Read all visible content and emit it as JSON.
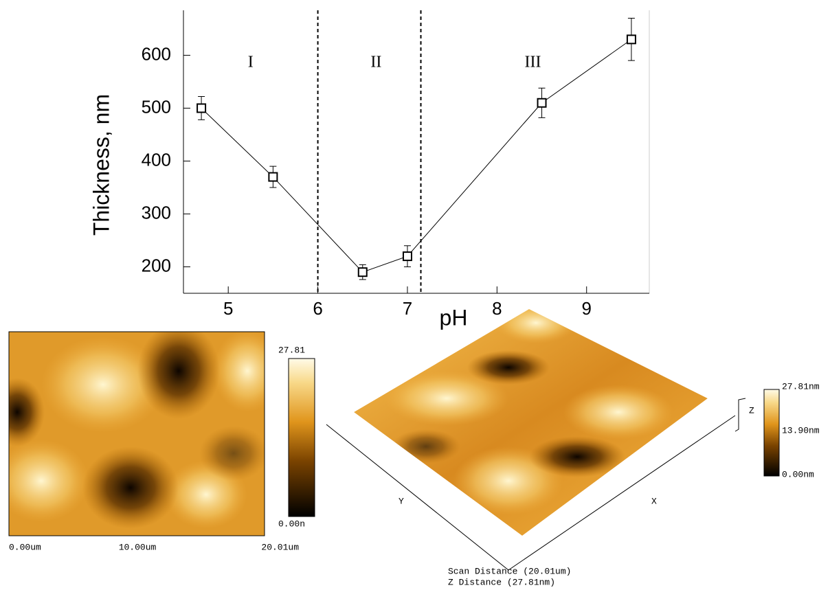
{
  "chart_data": {
    "type": "line",
    "x_label": "pH",
    "y_label": "Thickness, nm",
    "xlim": [
      4.5,
      9.7
    ],
    "xticks": [
      5,
      6,
      7,
      8,
      9
    ],
    "ylim": [
      150,
      685
    ],
    "yticks": [
      200,
      300,
      400,
      500,
      600
    ],
    "x": [
      4.7,
      5.5,
      6.5,
      7.0,
      8.5,
      9.5
    ],
    "series": [
      {
        "name": "Thickness",
        "color": "#000000",
        "values": [
          500,
          370,
          190,
          220,
          510,
          630
        ],
        "errors": [
          22,
          20,
          14,
          20,
          28,
          40
        ]
      }
    ],
    "dividers": [
      6.0,
      7.15
    ],
    "regions": [
      {
        "label": "I",
        "x": 5.25
      },
      {
        "label": "II",
        "x": 6.65
      },
      {
        "label": "III",
        "x": 8.4
      }
    ]
  },
  "images": {
    "map2d": {
      "max_label": "27.81",
      "min_label": "0.00n",
      "x_labels": [
        "0.00um",
        "10.00um",
        "20.01um"
      ]
    },
    "surface3d": {
      "scale_labels": [
        "27.81nm",
        "13.90nm",
        "0.00nm"
      ],
      "axis_x": "X",
      "axis_y": "Y",
      "axis_z": "Z",
      "scan_distance": "Scan Distance (20.01um)",
      "z_distance": "Z Distance (27.81nm)"
    }
  }
}
